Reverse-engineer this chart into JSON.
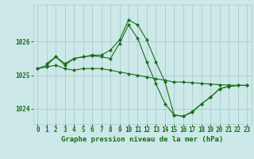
{
  "title": "Graphe pression niveau de la mer (hPa)",
  "bg_color": "#cce8e8",
  "grid_color": "#aacccc",
  "line_color": "#1a6e1a",
  "marker_color": "#1a6e1a",
  "tick_fontsize": 5.5,
  "title_fontsize": 6.5,
  "xlim": [
    -0.5,
    23.5
  ],
  "ylim": [
    1023.55,
    1027.1
  ],
  "yticks": [
    1024,
    1025,
    1026
  ],
  "xticks": [
    0,
    1,
    2,
    3,
    4,
    5,
    6,
    7,
    8,
    9,
    10,
    11,
    12,
    13,
    14,
    15,
    16,
    17,
    18,
    19,
    20,
    21,
    22,
    23
  ],
  "series": [
    {
      "x": [
        0,
        1,
        2,
        3,
        4,
        5,
        6,
        7,
        8,
        9,
        10,
        11,
        12,
        13,
        14,
        15,
        16,
        17,
        18,
        19,
        20,
        21,
        22,
        23
      ],
      "y": [
        1025.2,
        1025.25,
        1025.3,
        1025.2,
        1025.15,
        1025.2,
        1025.2,
        1025.2,
        1025.15,
        1025.1,
        1025.05,
        1025.0,
        1024.95,
        1024.9,
        1024.85,
        1024.8,
        1024.8,
        1024.78,
        1024.76,
        1024.74,
        1024.72,
        1024.71,
        1024.7,
        1024.7
      ]
    },
    {
      "x": [
        0,
        1,
        2,
        3,
        4,
        5,
        6,
        7,
        8,
        9,
        10,
        11,
        12,
        13,
        14,
        15,
        16,
        17,
        18,
        19,
        20,
        21,
        22,
        23
      ],
      "y": [
        1025.2,
        1025.3,
        1025.55,
        1025.35,
        1025.5,
        1025.55,
        1025.6,
        1025.6,
        1025.75,
        1026.05,
        1026.65,
        1026.5,
        1026.05,
        1025.4,
        1024.8,
        1023.82,
        1023.78,
        1023.9,
        1024.15,
        1024.35,
        1024.6,
        1024.67,
        1024.7,
        1024.7
      ]
    },
    {
      "x": [
        1,
        2,
        3,
        4,
        5,
        6,
        7,
        8,
        9,
        10,
        11,
        12,
        13,
        14,
        15,
        16,
        17,
        18,
        19,
        20,
        21,
        22,
        23
      ],
      "y": [
        1025.35,
        1025.55,
        1025.3,
        1025.5,
        1025.55,
        1025.58,
        1025.55,
        1025.5,
        1025.95,
        1026.5,
        1026.1,
        1025.4,
        1024.75,
        1024.15,
        1023.82,
        1023.78,
        1023.92,
        1024.15,
        1024.35,
        1024.6,
        1024.67,
        1024.7,
        1024.7
      ]
    }
  ]
}
